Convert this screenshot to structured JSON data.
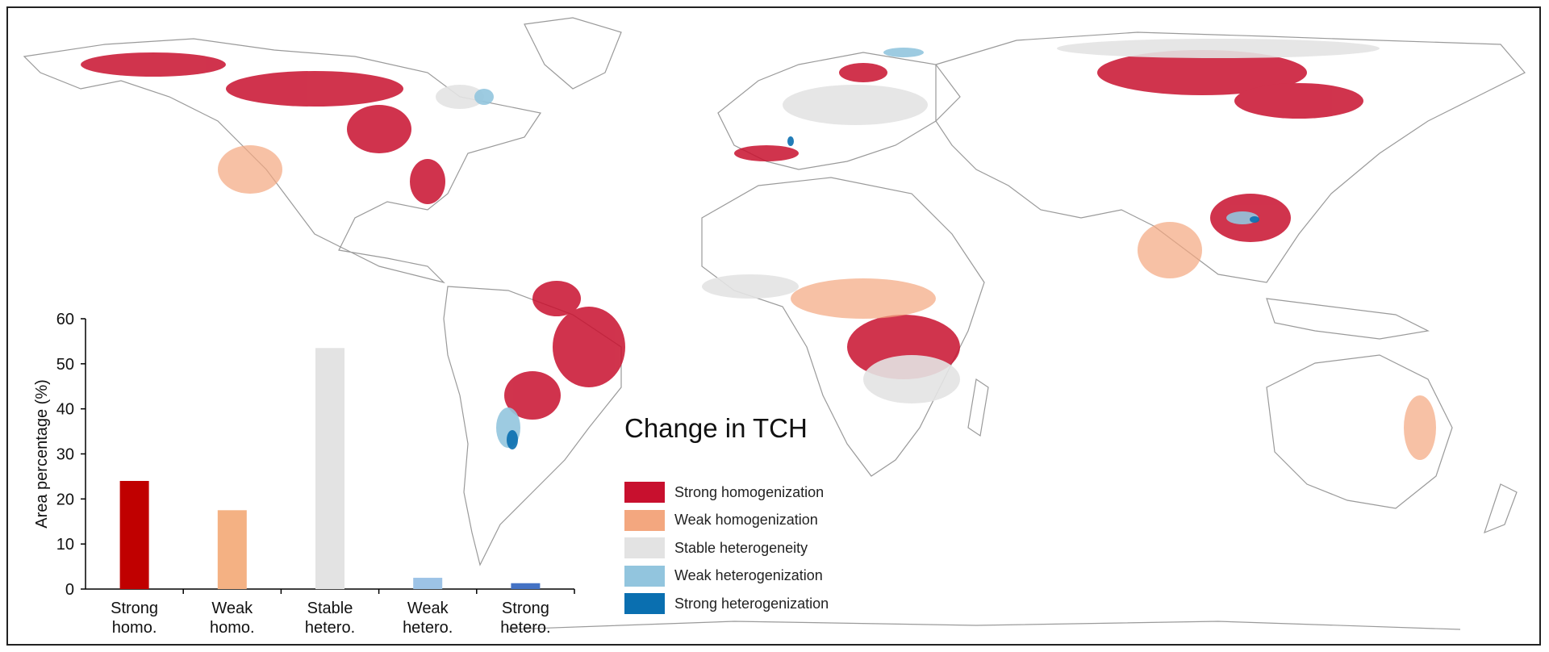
{
  "legend": {
    "title": "Change in TCH",
    "items": [
      {
        "label": "Strong homogenization",
        "color": "#c8102e"
      },
      {
        "label": "Weak homogenization",
        "color": "#f3a77f"
      },
      {
        "label": "Stable heterogeneity",
        "color": "#e3e3e3"
      },
      {
        "label": "Weak heterogenization",
        "color": "#92c5de"
      },
      {
        "label": "Strong heterogenization",
        "color": "#0a6fb0"
      }
    ]
  },
  "chart_data": {
    "type": "bar",
    "categories": [
      "Strong homo.",
      "Weak homo.",
      "Stable hetero.",
      "Weak hetero.",
      "Strong hetero."
    ],
    "values": [
      24,
      17.5,
      53.5,
      2.5,
      1.3
    ],
    "colors": [
      "#c00000",
      "#f4b183",
      "#e3e3e3",
      "#9dc3e6",
      "#4472c4"
    ],
    "ylabel": "Area percentage (%)",
    "ylim": [
      0,
      60
    ],
    "yticks": [
      0,
      10,
      20,
      30,
      40,
      50,
      60
    ],
    "grid": false
  }
}
